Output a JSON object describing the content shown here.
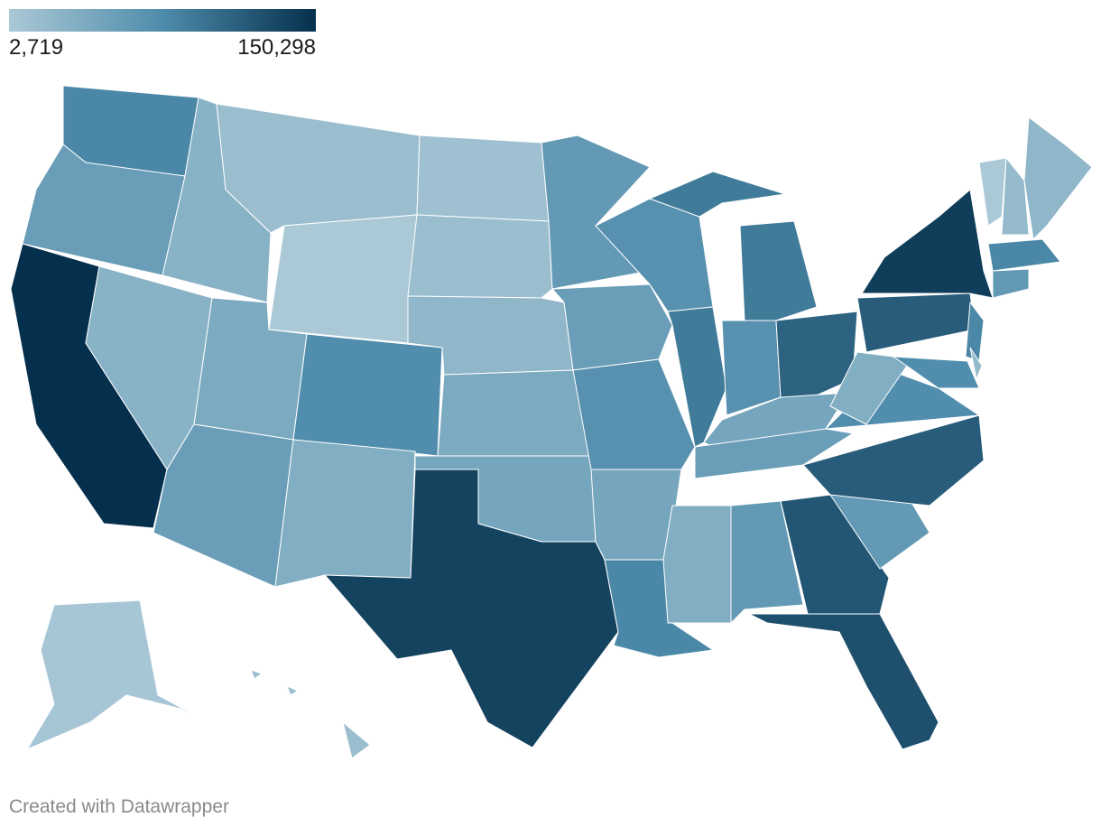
{
  "chart_data": {
    "type": "choropleth",
    "legend": {
      "min": {
        "value": 2719,
        "label": "2,719"
      },
      "max": {
        "value": 150298,
        "label": "150,298"
      }
    },
    "colors": [
      "#aac8d6",
      "#4f8cab",
      "#05304d"
    ],
    "values": [
      80000,
      55000,
      150298,
      30000,
      30000,
      15000,
      2719,
      40000,
      55000,
      75000,
      35000,
      12000,
      15000,
      25000,
      40000,
      45000,
      135000,
      60000,
      55000,
      70000,
      45000,
      80000,
      70000,
      90000,
      90000,
      70000,
      110000,
      45000,
      55000,
      35000,
      60000,
      120000,
      125000,
      60000,
      115000,
      75000,
      35000,
      115000,
      140000,
      80000,
      75000,
      20000,
      3000,
      20000,
      25000,
      80000,
      60000,
      5000,
      15000
    ]
  },
  "footer": "Created with Datawrapper"
}
